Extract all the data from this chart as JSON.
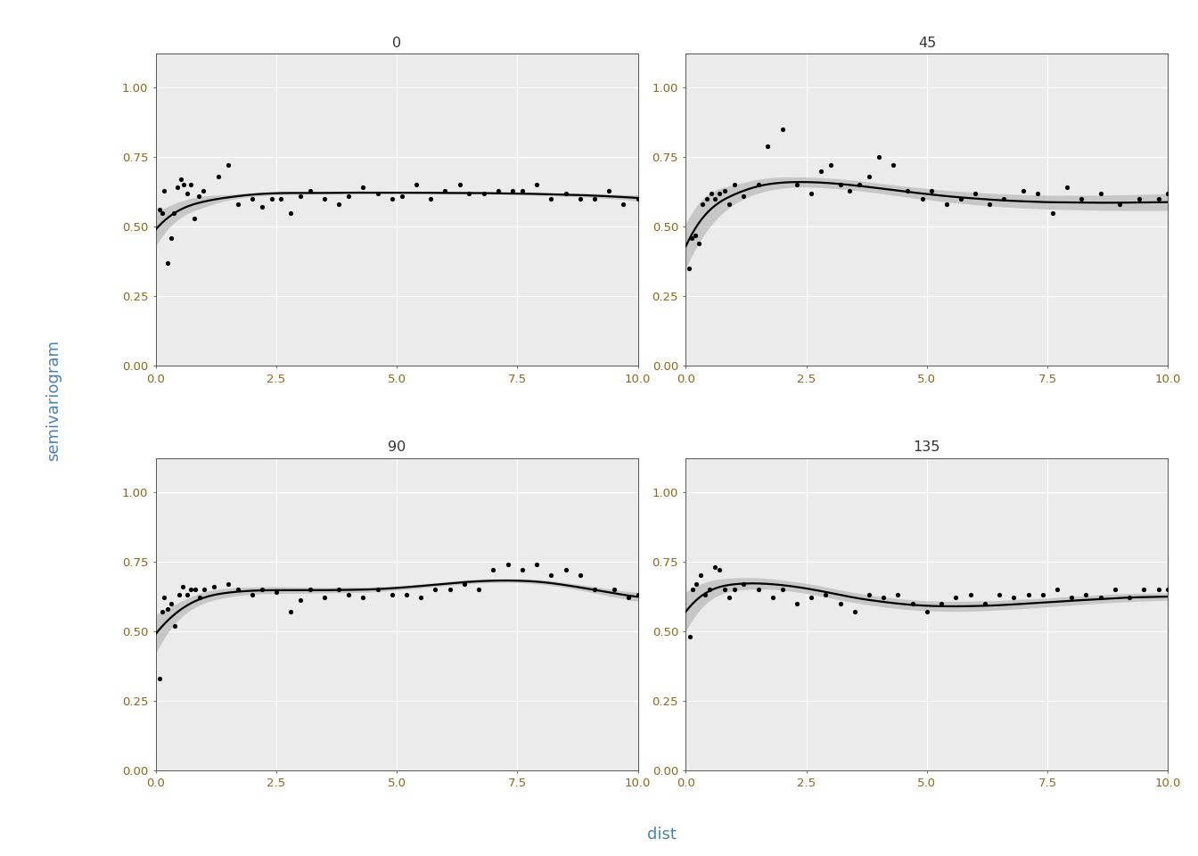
{
  "panels": [
    "0",
    "45",
    "90",
    "135"
  ],
  "xlabel": "dist",
  "ylabel": "semivariogram",
  "xlim": [
    -0.2,
    10.5
  ],
  "ylim": [
    -0.02,
    1.15
  ],
  "yticks": [
    0.0,
    0.25,
    0.5,
    0.75,
    1.0
  ],
  "xticks": [
    0.0,
    2.5,
    5.0,
    7.5,
    10.0
  ],
  "background_color": "#ffffff",
  "panel_bg": "#ebebeb",
  "grid_color": "#ffffff",
  "header_bg": "#d3d3d3",
  "scatter_color": "#000000",
  "line_color": "#000000",
  "ci_color": "#aaaaaa",
  "tick_label_color": "#8B6914",
  "axis_label_color": "#4682B4",
  "data_0_x": [
    0.07,
    0.13,
    0.18,
    0.25,
    0.32,
    0.38,
    0.45,
    0.52,
    0.58,
    0.65,
    0.72,
    0.8,
    0.9,
    0.98,
    1.3,
    1.5,
    1.7,
    2.0,
    2.2,
    2.4,
    2.6,
    2.8,
    3.0,
    3.2,
    3.5,
    3.8,
    4.0,
    4.3,
    4.6,
    4.9,
    5.1,
    5.4,
    5.7,
    6.0,
    6.3,
    6.5,
    6.8,
    7.1,
    7.4,
    7.6,
    7.9,
    8.2,
    8.5,
    8.8,
    9.1,
    9.4,
    9.7,
    10.0
  ],
  "data_0_y": [
    0.56,
    0.55,
    0.63,
    0.37,
    0.46,
    0.55,
    0.64,
    0.67,
    0.65,
    0.62,
    0.65,
    0.53,
    0.61,
    0.63,
    0.68,
    0.72,
    0.58,
    0.6,
    0.57,
    0.6,
    0.6,
    0.55,
    0.61,
    0.63,
    0.6,
    0.58,
    0.61,
    0.64,
    0.62,
    0.6,
    0.61,
    0.65,
    0.6,
    0.63,
    0.65,
    0.62,
    0.62,
    0.63,
    0.63,
    0.63,
    0.65,
    0.6,
    0.62,
    0.6,
    0.6,
    0.63,
    0.58,
    0.6
  ],
  "data_45_x": [
    0.07,
    0.13,
    0.2,
    0.27,
    0.35,
    0.43,
    0.52,
    0.6,
    0.7,
    0.8,
    0.9,
    1.0,
    1.2,
    1.5,
    1.7,
    2.0,
    2.3,
    2.6,
    2.8,
    3.0,
    3.2,
    3.4,
    3.6,
    3.8,
    4.0,
    4.3,
    4.6,
    4.9,
    5.1,
    5.4,
    5.7,
    6.0,
    6.3,
    6.6,
    7.0,
    7.3,
    7.6,
    7.9,
    8.2,
    8.6,
    9.0,
    9.4,
    9.8,
    10.0
  ],
  "data_45_y": [
    0.35,
    0.46,
    0.47,
    0.44,
    0.58,
    0.6,
    0.62,
    0.6,
    0.62,
    0.63,
    0.58,
    0.65,
    0.61,
    0.65,
    0.79,
    0.85,
    0.65,
    0.62,
    0.7,
    0.72,
    0.65,
    0.63,
    0.65,
    0.68,
    0.75,
    0.72,
    0.63,
    0.6,
    0.63,
    0.58,
    0.6,
    0.62,
    0.58,
    0.6,
    0.63,
    0.62,
    0.55,
    0.64,
    0.6,
    0.62,
    0.58,
    0.6,
    0.6,
    0.62
  ],
  "data_90_x": [
    0.08,
    0.13,
    0.18,
    0.25,
    0.32,
    0.4,
    0.48,
    0.56,
    0.65,
    0.73,
    0.82,
    0.91,
    1.0,
    1.2,
    1.5,
    1.7,
    2.0,
    2.2,
    2.5,
    2.8,
    3.0,
    3.2,
    3.5,
    3.8,
    4.0,
    4.3,
    4.6,
    4.9,
    5.2,
    5.5,
    5.8,
    6.1,
    6.4,
    6.7,
    7.0,
    7.3,
    7.6,
    7.9,
    8.2,
    8.5,
    8.8,
    9.1,
    9.5,
    9.8,
    10.0
  ],
  "data_90_y": [
    0.33,
    0.57,
    0.62,
    0.58,
    0.6,
    0.52,
    0.63,
    0.66,
    0.63,
    0.65,
    0.65,
    0.62,
    0.65,
    0.66,
    0.67,
    0.65,
    0.63,
    0.65,
    0.64,
    0.57,
    0.61,
    0.65,
    0.62,
    0.65,
    0.63,
    0.62,
    0.65,
    0.63,
    0.63,
    0.62,
    0.65,
    0.65,
    0.67,
    0.65,
    0.72,
    0.74,
    0.72,
    0.74,
    0.7,
    0.72,
    0.7,
    0.65,
    0.65,
    0.62,
    0.63
  ],
  "data_135_x": [
    0.08,
    0.14,
    0.21,
    0.3,
    0.4,
    0.5,
    0.6,
    0.7,
    0.8,
    0.9,
    1.0,
    1.2,
    1.5,
    1.8,
    2.0,
    2.3,
    2.6,
    2.9,
    3.2,
    3.5,
    3.8,
    4.1,
    4.4,
    4.7,
    5.0,
    5.3,
    5.6,
    5.9,
    6.2,
    6.5,
    6.8,
    7.1,
    7.4,
    7.7,
    8.0,
    8.3,
    8.6,
    8.9,
    9.2,
    9.5,
    9.8,
    10.0
  ],
  "data_135_y": [
    0.48,
    0.65,
    0.67,
    0.7,
    0.63,
    0.65,
    0.73,
    0.72,
    0.65,
    0.62,
    0.65,
    0.67,
    0.65,
    0.62,
    0.65,
    0.6,
    0.62,
    0.63,
    0.6,
    0.57,
    0.63,
    0.62,
    0.63,
    0.6,
    0.57,
    0.6,
    0.62,
    0.63,
    0.6,
    0.63,
    0.62,
    0.63,
    0.63,
    0.65,
    0.62,
    0.63,
    0.62,
    0.65,
    0.62,
    0.65,
    0.65,
    0.65
  ],
  "smooth_0_x": [
    0.0,
    0.5,
    1.0,
    1.5,
    2.0,
    2.5,
    3.0,
    3.5,
    4.0,
    4.5,
    5.0,
    5.5,
    6.0,
    6.5,
    7.0,
    7.5,
    8.0,
    8.5,
    9.0,
    9.5,
    10.0
  ],
  "smooth_0_y": [
    0.49,
    0.56,
    0.59,
    0.605,
    0.615,
    0.62,
    0.621,
    0.621,
    0.622,
    0.622,
    0.622,
    0.622,
    0.621,
    0.621,
    0.62,
    0.619,
    0.617,
    0.615,
    0.612,
    0.608,
    0.603
  ],
  "smooth_0_lo": [
    0.43,
    0.53,
    0.57,
    0.595,
    0.608,
    0.614,
    0.616,
    0.617,
    0.618,
    0.618,
    0.618,
    0.618,
    0.617,
    0.617,
    0.616,
    0.615,
    0.612,
    0.609,
    0.605,
    0.6,
    0.592
  ],
  "smooth_0_hi": [
    0.55,
    0.59,
    0.61,
    0.615,
    0.622,
    0.626,
    0.626,
    0.625,
    0.626,
    0.626,
    0.626,
    0.626,
    0.625,
    0.625,
    0.624,
    0.623,
    0.622,
    0.621,
    0.619,
    0.616,
    0.614
  ],
  "smooth_45_x": [
    0.0,
    0.5,
    1.0,
    1.5,
    2.0,
    2.5,
    3.0,
    3.5,
    4.0,
    4.5,
    5.0,
    5.5,
    6.0,
    6.5,
    7.0,
    7.5,
    8.0,
    8.5,
    9.0,
    9.5,
    10.0
  ],
  "smooth_45_y": [
    0.43,
    0.56,
    0.615,
    0.645,
    0.658,
    0.66,
    0.656,
    0.648,
    0.638,
    0.627,
    0.617,
    0.608,
    0.601,
    0.595,
    0.591,
    0.588,
    0.587,
    0.586,
    0.586,
    0.587,
    0.588
  ],
  "smooth_45_lo": [
    0.35,
    0.5,
    0.58,
    0.62,
    0.638,
    0.642,
    0.638,
    0.63,
    0.62,
    0.608,
    0.597,
    0.587,
    0.579,
    0.572,
    0.567,
    0.563,
    0.561,
    0.559,
    0.558,
    0.558,
    0.558
  ],
  "smooth_45_hi": [
    0.51,
    0.62,
    0.65,
    0.67,
    0.678,
    0.678,
    0.674,
    0.666,
    0.656,
    0.646,
    0.637,
    0.629,
    0.623,
    0.618,
    0.615,
    0.613,
    0.613,
    0.613,
    0.614,
    0.616,
    0.618
  ],
  "smooth_90_x": [
    0.0,
    0.5,
    1.0,
    1.5,
    2.0,
    2.5,
    3.0,
    3.5,
    4.0,
    4.5,
    5.0,
    5.5,
    6.0,
    6.5,
    7.0,
    7.5,
    8.0,
    8.5,
    9.0,
    9.5,
    10.0
  ],
  "smooth_90_y": [
    0.49,
    0.575,
    0.62,
    0.638,
    0.645,
    0.647,
    0.647,
    0.647,
    0.648,
    0.65,
    0.655,
    0.662,
    0.67,
    0.677,
    0.681,
    0.681,
    0.676,
    0.665,
    0.651,
    0.636,
    0.623
  ],
  "smooth_90_lo": [
    0.42,
    0.545,
    0.6,
    0.622,
    0.632,
    0.635,
    0.636,
    0.637,
    0.638,
    0.641,
    0.647,
    0.655,
    0.663,
    0.67,
    0.674,
    0.674,
    0.668,
    0.656,
    0.64,
    0.623,
    0.607
  ],
  "smooth_90_hi": [
    0.56,
    0.605,
    0.64,
    0.654,
    0.658,
    0.659,
    0.658,
    0.657,
    0.658,
    0.659,
    0.663,
    0.669,
    0.677,
    0.684,
    0.688,
    0.688,
    0.684,
    0.674,
    0.662,
    0.649,
    0.639
  ],
  "smooth_135_x": [
    0.0,
    0.5,
    1.0,
    1.5,
    2.0,
    2.5,
    3.0,
    3.5,
    4.0,
    4.5,
    5.0,
    5.5,
    6.0,
    6.5,
    7.0,
    7.5,
    8.0,
    8.5,
    9.0,
    9.5,
    10.0
  ],
  "smooth_135_y": [
    0.57,
    0.645,
    0.668,
    0.671,
    0.665,
    0.653,
    0.637,
    0.62,
    0.607,
    0.597,
    0.591,
    0.589,
    0.59,
    0.593,
    0.598,
    0.603,
    0.609,
    0.614,
    0.619,
    0.622,
    0.624
  ],
  "smooth_135_lo": [
    0.5,
    0.61,
    0.645,
    0.651,
    0.647,
    0.635,
    0.619,
    0.602,
    0.589,
    0.579,
    0.573,
    0.571,
    0.572,
    0.576,
    0.581,
    0.587,
    0.593,
    0.599,
    0.604,
    0.608,
    0.61
  ],
  "smooth_135_hi": [
    0.64,
    0.68,
    0.691,
    0.691,
    0.683,
    0.671,
    0.655,
    0.638,
    0.625,
    0.615,
    0.609,
    0.607,
    0.608,
    0.61,
    0.615,
    0.619,
    0.625,
    0.629,
    0.634,
    0.636,
    0.638
  ]
}
